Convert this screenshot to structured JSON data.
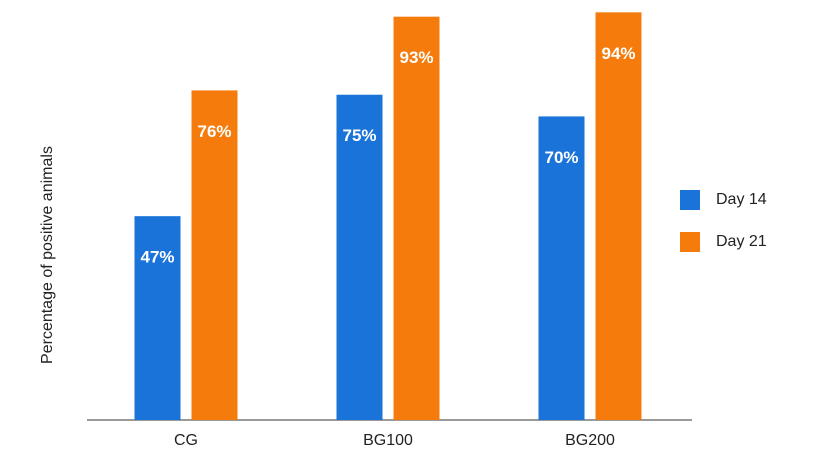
{
  "chart_data": {
    "type": "bar",
    "categories": [
      "CG",
      "BG100",
      "BG200"
    ],
    "y_label": "Percentage of positive animals",
    "series": [
      {
        "name": "Day 14",
        "color": "#1a73d9",
        "values": [
          47,
          75,
          70
        ],
        "value_labels": [
          "47%",
          "75%",
          "70%"
        ]
      },
      {
        "name": "Day 21",
        "color": "#f57c0c",
        "values": [
          76,
          93,
          94
        ],
        "value_labels": [
          "76%",
          "93%",
          "94%"
        ]
      }
    ],
    "ylim": [
      0,
      95
    ],
    "legend": "right"
  }
}
